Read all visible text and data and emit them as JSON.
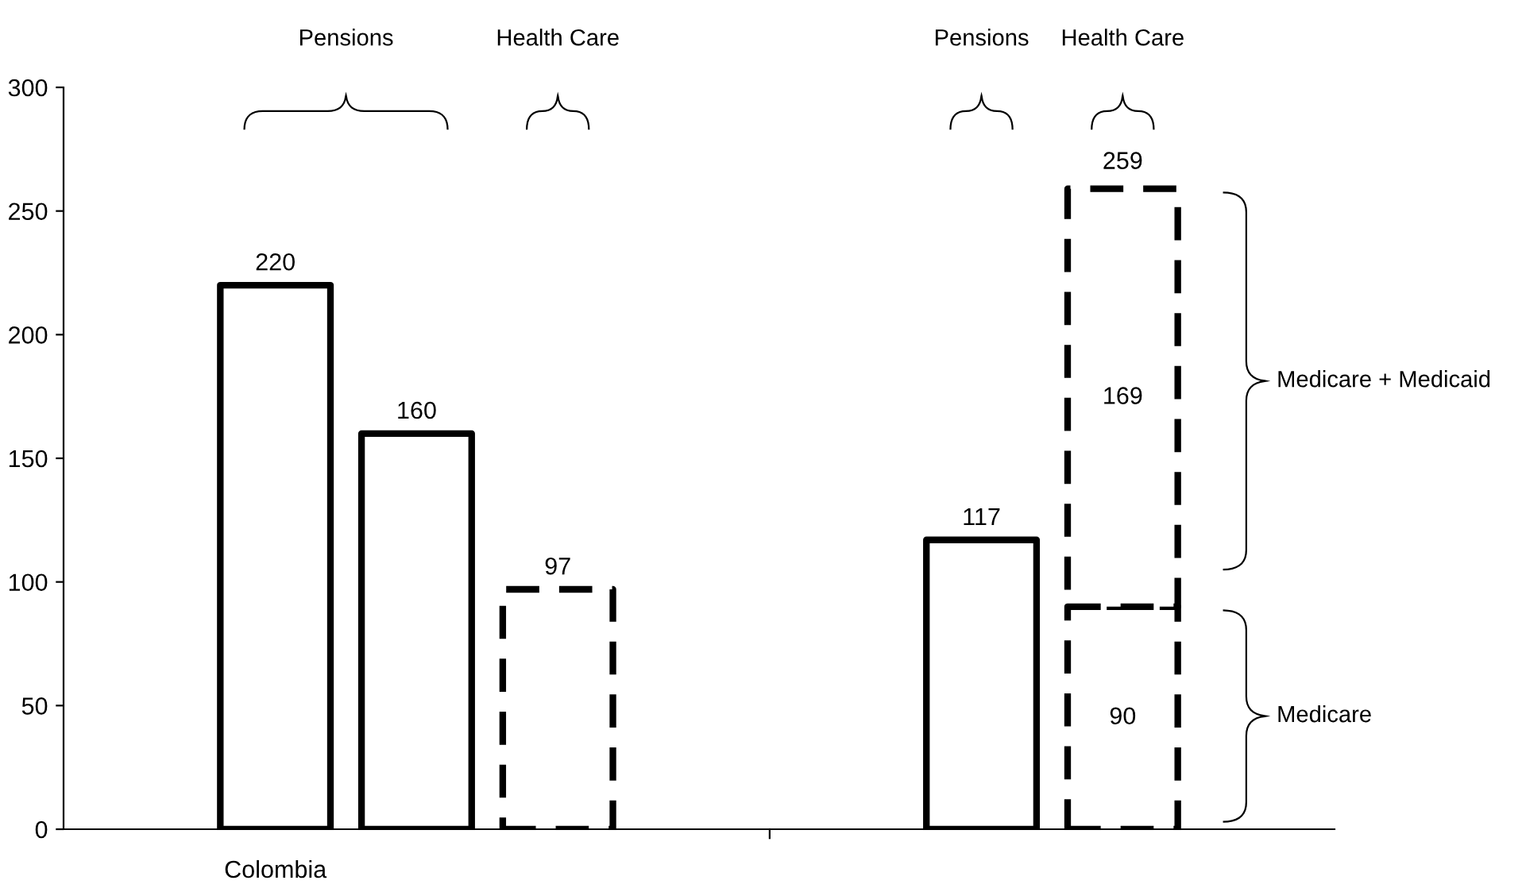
{
  "chart_data": {
    "type": "bar",
    "stacked": true,
    "categories": [
      null,
      "Colombia",
      null,
      null,
      null,
      null,
      null,
      null,
      null
    ],
    "series": [
      {
        "color": "#000000",
        "line_style": "solid",
        "values": [
          null,
          220,
          160,
          null,
          null,
          null,
          117,
          null,
          null
        ]
      },
      {
        "color": "#000000",
        "line_style": "dashed",
        "values": [
          null,
          null,
          null,
          97,
          null,
          null,
          null,
          90,
          null
        ]
      },
      {
        "color": "#000000",
        "line_style": "dashed",
        "values": [
          null,
          null,
          null,
          null,
          null,
          null,
          null,
          169,
          null
        ]
      }
    ],
    "ylim": [
      0,
      300
    ],
    "yticks": [
      0,
      50,
      100,
      150,
      200,
      250,
      300
    ],
    "grid": false,
    "legend": false,
    "data_labels": true,
    "totals": [
      null,
      null,
      null,
      null,
      null,
      null,
      null,
      "259",
      null
    ],
    "annotations": [
      "Pensions",
      "Health Care",
      "Pensions",
      "Health Care",
      "Medicare + Medicaid",
      "Medicare"
    ]
  }
}
